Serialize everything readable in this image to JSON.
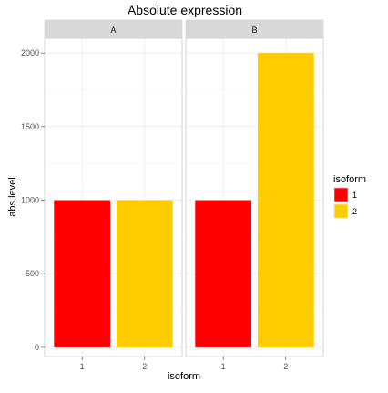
{
  "chart_data": {
    "type": "bar",
    "title": "Absolute expression",
    "xlabel": "isoform",
    "ylabel": "abs.level",
    "ylim": [
      -62.5,
      2100
    ],
    "yticks": [
      0,
      500,
      1000,
      1500,
      2000
    ],
    "grid": true,
    "facets": [
      {
        "label": "A",
        "categories": [
          "1",
          "2"
        ],
        "values": [
          1000,
          1000
        ]
      },
      {
        "label": "B",
        "categories": [
          "1",
          "2"
        ],
        "values": [
          1000,
          2000
        ]
      }
    ],
    "legend": {
      "title": "isoform",
      "placement": "right",
      "entries": [
        {
          "label": "1",
          "color": "#ff0000"
        },
        {
          "label": "2",
          "color": "#ffcc00"
        }
      ]
    },
    "colors": {
      "1": "#ff0000",
      "2": "#ffcc00"
    }
  }
}
